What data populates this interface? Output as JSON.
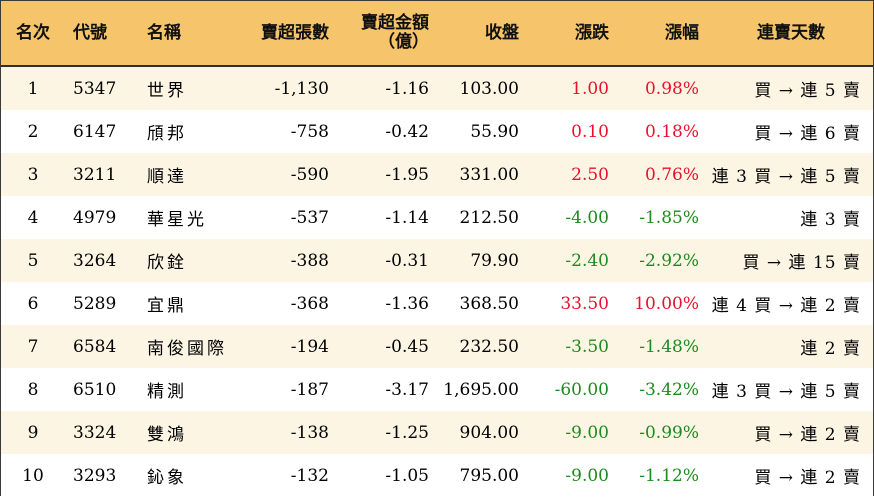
{
  "colors": {
    "header_bg": "#f6c56b",
    "odd_row_bg": "#fdf5e4",
    "up": "#e8112d",
    "down": "#1e8a1e"
  },
  "headers": {
    "rank": "名次",
    "code": "代號",
    "name": "名稱",
    "sell_lots": "賣超張數",
    "sell_amount": "賣超金額",
    "sell_amount_unit": "（億）",
    "close": "收盤",
    "change": "漲跌",
    "change_pct": "漲幅",
    "streak": "連賣天數"
  },
  "rows": [
    {
      "rank": "1",
      "code": "5347",
      "name": "世界",
      "sell_lots": "-1,130",
      "sell_amount": "-1.16",
      "close": "103.00",
      "change": "1.00",
      "change_pct": "0.98%",
      "dir": "up",
      "streak": "買 → 連 5 賣"
    },
    {
      "rank": "2",
      "code": "6147",
      "name": "頎邦",
      "sell_lots": "-758",
      "sell_amount": "-0.42",
      "close": "55.90",
      "change": "0.10",
      "change_pct": "0.18%",
      "dir": "up",
      "streak": "買 → 連 6 賣"
    },
    {
      "rank": "3",
      "code": "3211",
      "name": "順達",
      "sell_lots": "-590",
      "sell_amount": "-1.95",
      "close": "331.00",
      "change": "2.50",
      "change_pct": "0.76%",
      "dir": "up",
      "streak": "連 3 買 → 連 5 賣"
    },
    {
      "rank": "4",
      "code": "4979",
      "name": "華星光",
      "sell_lots": "-537",
      "sell_amount": "-1.14",
      "close": "212.50",
      "change": "-4.00",
      "change_pct": "-1.85%",
      "dir": "down",
      "streak": "連 3 賣"
    },
    {
      "rank": "5",
      "code": "3264",
      "name": "欣銓",
      "sell_lots": "-388",
      "sell_amount": "-0.31",
      "close": "79.90",
      "change": "-2.40",
      "change_pct": "-2.92%",
      "dir": "down",
      "streak": "買 → 連 15 賣"
    },
    {
      "rank": "6",
      "code": "5289",
      "name": "宜鼎",
      "sell_lots": "-368",
      "sell_amount": "-1.36",
      "close": "368.50",
      "change": "33.50",
      "change_pct": "10.00%",
      "dir": "up",
      "streak": "連 4 買 → 連 2 賣"
    },
    {
      "rank": "7",
      "code": "6584",
      "name": "南俊國際",
      "sell_lots": "-194",
      "sell_amount": "-0.45",
      "close": "232.50",
      "change": "-3.50",
      "change_pct": "-1.48%",
      "dir": "down",
      "streak": "連 2 賣"
    },
    {
      "rank": "8",
      "code": "6510",
      "name": "精測",
      "sell_lots": "-187",
      "sell_amount": "-3.17",
      "close": "1,695.00",
      "change": "-60.00",
      "change_pct": "-3.42%",
      "dir": "down",
      "streak": "連 3 買 → 連 5 賣"
    },
    {
      "rank": "9",
      "code": "3324",
      "name": "雙鴻",
      "sell_lots": "-138",
      "sell_amount": "-1.25",
      "close": "904.00",
      "change": "-9.00",
      "change_pct": "-0.99%",
      "dir": "down",
      "streak": "買 → 連 2 賣"
    },
    {
      "rank": "10",
      "code": "3293",
      "name": "鈊象",
      "sell_lots": "-132",
      "sell_amount": "-1.05",
      "close": "795.00",
      "change": "-9.00",
      "change_pct": "-1.12%",
      "dir": "down",
      "streak": "買 → 連 2 賣"
    }
  ]
}
